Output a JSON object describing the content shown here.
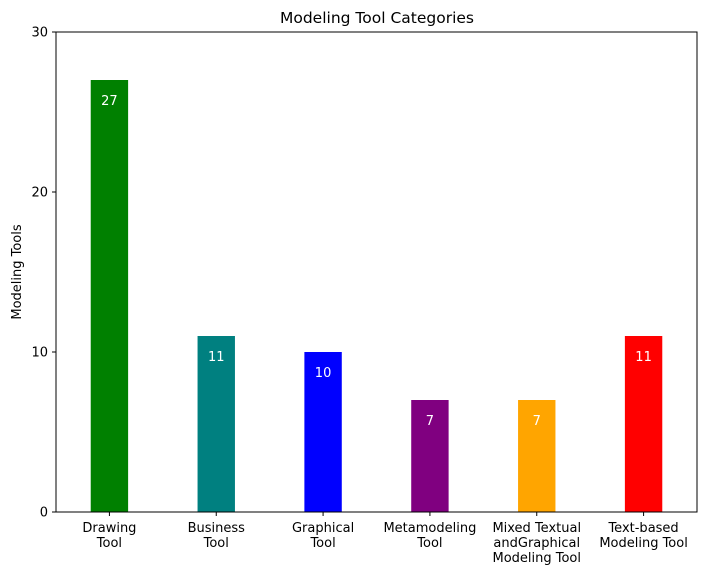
{
  "chart_data": {
    "type": "bar",
    "title": "Modeling Tool Categories",
    "xlabel": "",
    "ylabel": "Modeling Tools",
    "ylim": [
      0,
      30
    ],
    "yticks": [
      0,
      10,
      20,
      30
    ],
    "grid": false,
    "categories": [
      "Drawing\nTool",
      "Business\nTool",
      "Graphical\nTool",
      "Metamodeling\nTool",
      "Mixed Textual\nandGraphical\nModeling Tool",
      "Text-based\nModeling Tool"
    ],
    "values": [
      27,
      11,
      10,
      7,
      7,
      11
    ],
    "colors": [
      "#008000",
      "#008080",
      "#0000ff",
      "#800080",
      "#ffa500",
      "#ff0000"
    ],
    "data_labels": [
      "27",
      "11",
      "10",
      "7",
      "7",
      "11"
    ]
  }
}
